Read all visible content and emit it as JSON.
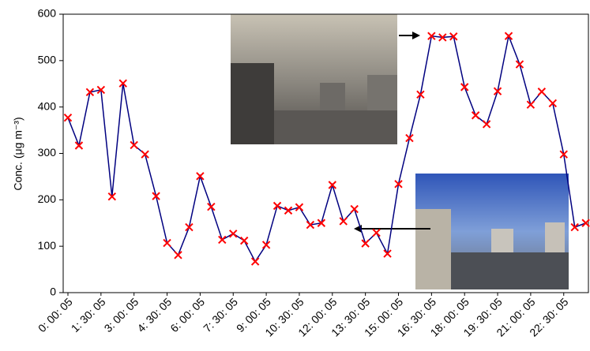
{
  "chart_data": {
    "type": "line",
    "y_label": "Conc. (μg m⁻³)",
    "categories": [
      "0: 00: 05",
      null,
      null,
      "1: 30: 05",
      null,
      null,
      "3: 00: 05",
      null,
      null,
      "4: 30: 05",
      null,
      null,
      "6: 00: 05",
      null,
      null,
      "7: 30: 05",
      null,
      null,
      "9: 00: 05",
      null,
      null,
      "10: 30: 05",
      null,
      null,
      "12: 00: 05",
      null,
      null,
      "13: 30: 05",
      null,
      null,
      "15: 00: 05",
      null,
      null,
      "16: 30: 05",
      null,
      null,
      "18: 00: 05",
      null,
      null,
      "19: 30: 05",
      null,
      null,
      "21: 00: 05",
      null,
      null,
      "22: 30: 05",
      null,
      null
    ],
    "series": [
      {
        "line_color": "#000080",
        "marker_color": "#ff0000",
        "values": [
          377,
          317,
          432,
          437,
          207,
          451,
          318,
          298,
          208,
          107,
          81,
          141,
          251,
          185,
          114,
          127,
          112,
          67,
          103,
          187,
          177,
          184,
          146,
          150,
          232,
          154,
          180,
          106,
          129,
          84,
          234,
          333,
          427,
          553,
          550,
          552,
          443,
          382,
          363,
          434,
          553,
          492,
          405,
          433,
          408,
          298,
          141,
          150
        ]
      }
    ],
    "ylim": [
      0,
      600
    ],
    "yticks": [
      0,
      100,
      200,
      300,
      400,
      500,
      600
    ],
    "grid": false
  }
}
